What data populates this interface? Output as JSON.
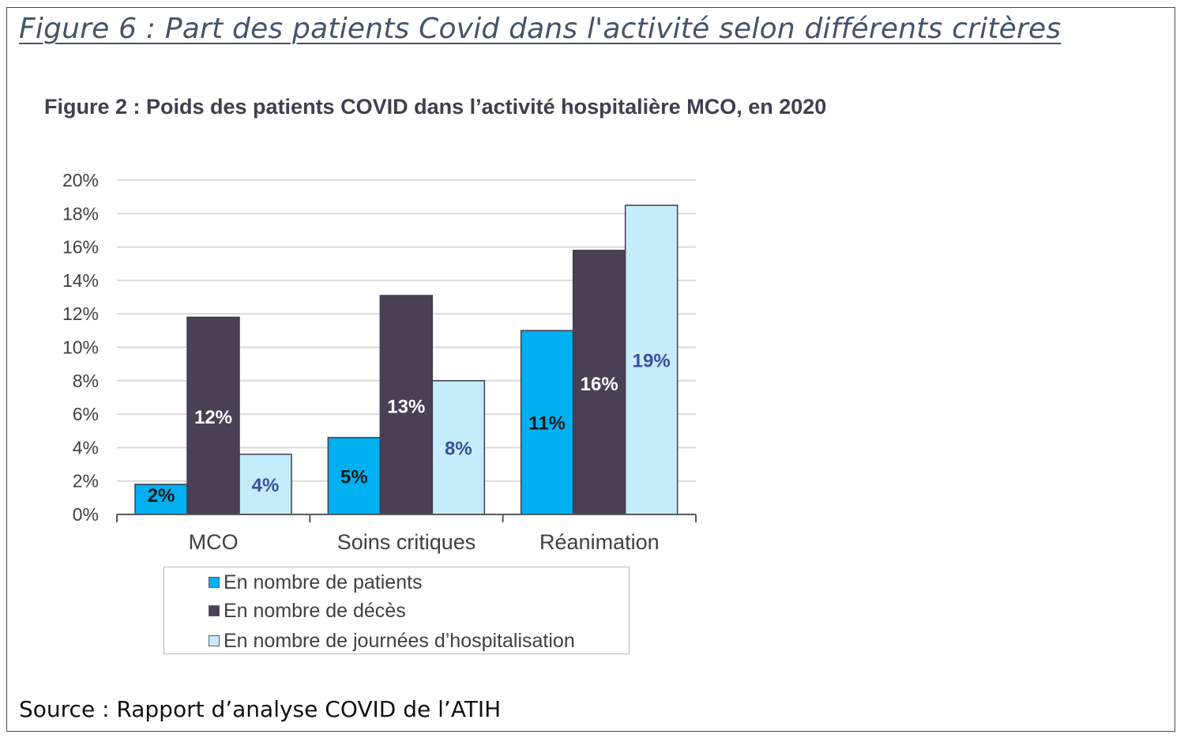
{
  "document": {
    "title": "Figure 6 : Part des patients Covid dans l'activité selon différents critères",
    "source": "Source : Rapport d’analyse COVID de l’ATIH"
  },
  "colors": {
    "patients": "#00b0f0",
    "deces": "#4a3f55",
    "journees": "#c4ecfa",
    "label_dark": "#1a1a1a",
    "label_light": "#ffffff",
    "label_blue": "#3a4fa0",
    "grid": "#d9d9d9",
    "axis": "#595959"
  },
  "chart_data": {
    "type": "bar",
    "title": "Figure 2 : Poids des patients COVID dans l’activité hospitalière MCO, en 2020",
    "xlabel": "",
    "ylabel": "",
    "categories": [
      "MCO",
      "Soins critiques",
      "Réanimation"
    ],
    "ylim": [
      0,
      20
    ],
    "y_ticks": [
      "0%",
      "2%",
      "4%",
      "6%",
      "8%",
      "10%",
      "12%",
      "14%",
      "16%",
      "18%",
      "20%"
    ],
    "grid": true,
    "legend_position": "bottom",
    "series": [
      {
        "name": "En nombre de patients",
        "color": "#00b0f0",
        "values": [
          1.8,
          4.6,
          11.0
        ],
        "labels": [
          "2%",
          "5%",
          "11%"
        ],
        "label_color": "#1a1a1a"
      },
      {
        "name": "En nombre de décès",
        "color": "#4a3f55",
        "values": [
          11.8,
          13.1,
          15.8
        ],
        "labels": [
          "12%",
          "13%",
          "16%"
        ],
        "label_color": "#ffffff"
      },
      {
        "name": "En nombre de journées d’hospitalisation",
        "color": "#c4ecfa",
        "values": [
          3.6,
          8.0,
          18.5
        ],
        "labels": [
          "4%",
          "8%",
          "19%"
        ],
        "label_color": "#3a4fa0"
      }
    ]
  }
}
